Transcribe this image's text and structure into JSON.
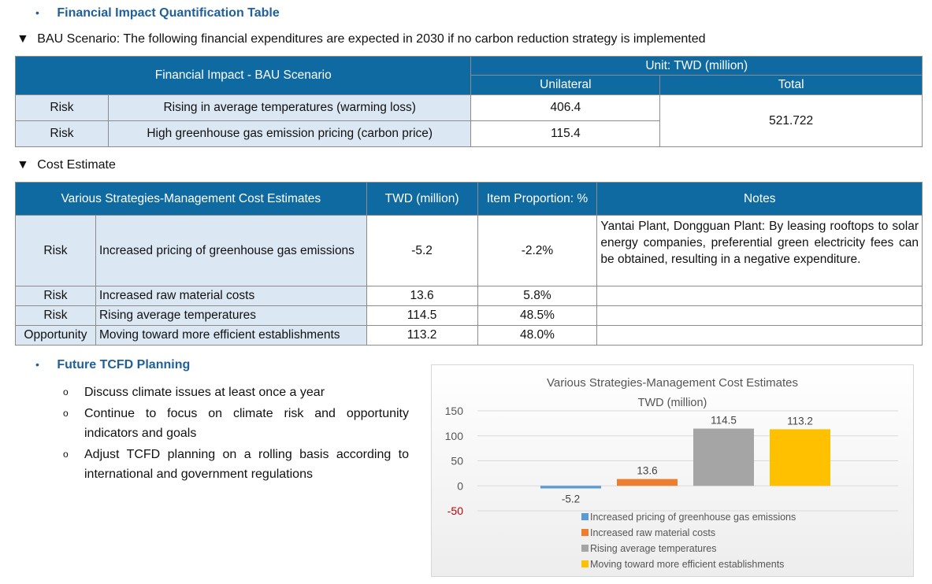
{
  "section1": {
    "bullet": "•",
    "title": "Financial Impact Quantification Table"
  },
  "bau": {
    "marker": "▼",
    "heading": "BAU Scenario: The following financial expenditures are expected  in 2030 if no carbon reduction strategy is implemented",
    "table": {
      "header_main": "Financial Impact - BAU Scenario",
      "header_unit": "Unit: TWD (million)",
      "header_unilateral": "Unilateral",
      "header_total": "Total",
      "rows": [
        {
          "type": "Risk",
          "item": "Rising in average temperatures (warming loss)",
          "unilateral": "406.4"
        },
        {
          "type": "Risk",
          "item": "High greenhouse gas emission pricing (carbon price)",
          "unilateral": "115.4"
        }
      ],
      "total": "521.722"
    }
  },
  "cost": {
    "marker": "▼",
    "heading": "Cost Estimate",
    "table": {
      "headers": [
        "Various Strategies-Management Cost Estimates",
        "TWD (million)",
        "Item Proportion: %",
        "Notes"
      ],
      "rows": [
        {
          "type": "Risk",
          "item": "Increased pricing of greenhouse gas emissions",
          "twd": "-5.2",
          "pct": "-2.2%",
          "notes": "Yantai Plant, Dongguan Plant: By leasing rooftops to solar energy companies, preferential green electricity fees can be obtained, resulting in a negative expenditure."
        },
        {
          "type": "Risk",
          "item": "Increased raw material costs",
          "twd": "13.6",
          "pct": "5.8%",
          "notes": ""
        },
        {
          "type": "Risk",
          "item": "Rising average temperatures",
          "twd": "114.5",
          "pct": "48.5%",
          "notes": ""
        },
        {
          "type": "Opportunity",
          "item": "Moving toward more efficient establishments",
          "twd": "113.2",
          "pct": "48.0%",
          "notes": ""
        }
      ]
    }
  },
  "future": {
    "bullet": "•",
    "title": "Future TCFD Planning",
    "sub_bullet": "o",
    "items": [
      "Discuss climate issues at least once a year",
      "Continue to focus on climate risk and opportunity indicators and goals",
      "Adjust TCFD planning on a rolling basis according to international and government regulations"
    ]
  },
  "chart_data": {
    "type": "bar",
    "title": "Various Strategies-Management Cost Estimates",
    "subtitle": "TWD (million)",
    "ylim": [
      -50,
      150
    ],
    "yticks": [
      "150",
      "100",
      "50",
      "0",
      "-50"
    ],
    "grid": true,
    "legend_position": "bottom",
    "series": [
      {
        "name": "Increased pricing of greenhouse gas emissions",
        "value": -5.2,
        "label": "-5.2",
        "color": "#5b9bd5"
      },
      {
        "name": "Increased raw material costs",
        "value": 13.6,
        "label": "13.6",
        "color": "#ed7d31"
      },
      {
        "name": "Rising average temperatures",
        "value": 114.5,
        "label": "114.5",
        "color": "#a5a5a5"
      },
      {
        "name": "Moving toward more efficient establishments",
        "value": 113.2,
        "label": "113.2",
        "color": "#ffc000"
      }
    ],
    "negative_tick_color": "#c00000"
  }
}
